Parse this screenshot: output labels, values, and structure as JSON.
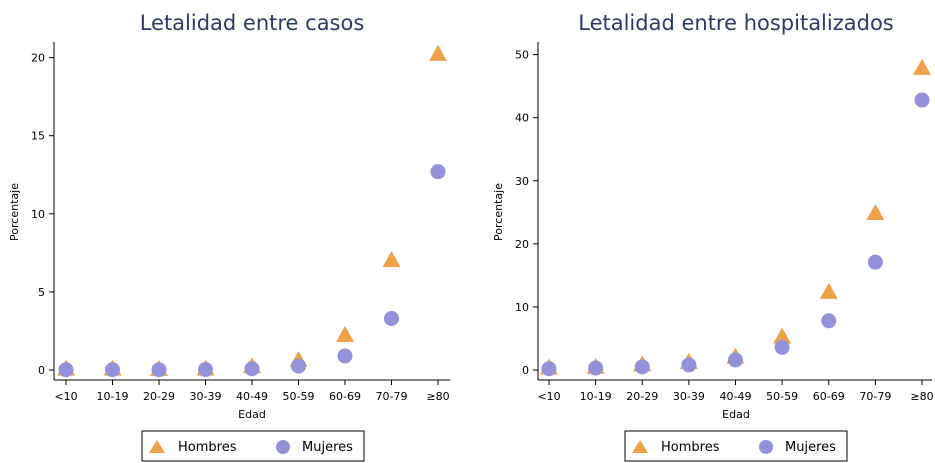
{
  "legend": {
    "hombres": "Hombres",
    "mujeres": "Mujeres"
  },
  "colors": {
    "hombres": "#eda24a",
    "mujeres": "#9391da",
    "title": "#2e3a66"
  },
  "chart_data": [
    {
      "type": "scatter",
      "title": "Letalidad entre casos",
      "xlabel": "Edad",
      "ylabel": "Porcentaje",
      "categories": [
        "<10",
        "10-19",
        "20-29",
        "30-39",
        "40-49",
        "50-59",
        "60-69",
        "70-79",
        "≥80"
      ],
      "ylim": [
        0,
        21
      ],
      "yticks": [
        0,
        5,
        10,
        15,
        20
      ],
      "grid": false,
      "legend": "bottom",
      "series": [
        {
          "name": "Hombres",
          "marker": "triangle",
          "values": [
            0.05,
            0.05,
            0.03,
            0.05,
            0.2,
            0.6,
            2.2,
            7.0,
            20.2
          ]
        },
        {
          "name": "Mujeres",
          "marker": "circle",
          "values": [
            0.02,
            0.02,
            0.02,
            0.03,
            0.08,
            0.25,
            0.9,
            3.3,
            12.7
          ]
        }
      ]
    },
    {
      "type": "scatter",
      "title": "Letalidad entre hospitalizados",
      "xlabel": "Edad",
      "ylabel": "Porcentaje",
      "categories": [
        "<10",
        "10-19",
        "20-29",
        "30-39",
        "40-49",
        "50-59",
        "60-69",
        "70-79",
        "≥80"
      ],
      "ylim": [
        0,
        52
      ],
      "yticks": [
        0,
        10,
        20,
        30,
        40,
        50
      ],
      "grid": false,
      "legend": "bottom",
      "series": [
        {
          "name": "Hombres",
          "marker": "triangle",
          "values": [
            0.3,
            0.4,
            0.8,
            1.2,
            2.0,
            5.2,
            12.3,
            24.8,
            47.8
          ]
        },
        {
          "name": "Mujeres",
          "marker": "circle",
          "values": [
            0.2,
            0.3,
            0.5,
            0.8,
            1.6,
            3.6,
            7.8,
            17.1,
            42.8
          ]
        }
      ]
    }
  ]
}
